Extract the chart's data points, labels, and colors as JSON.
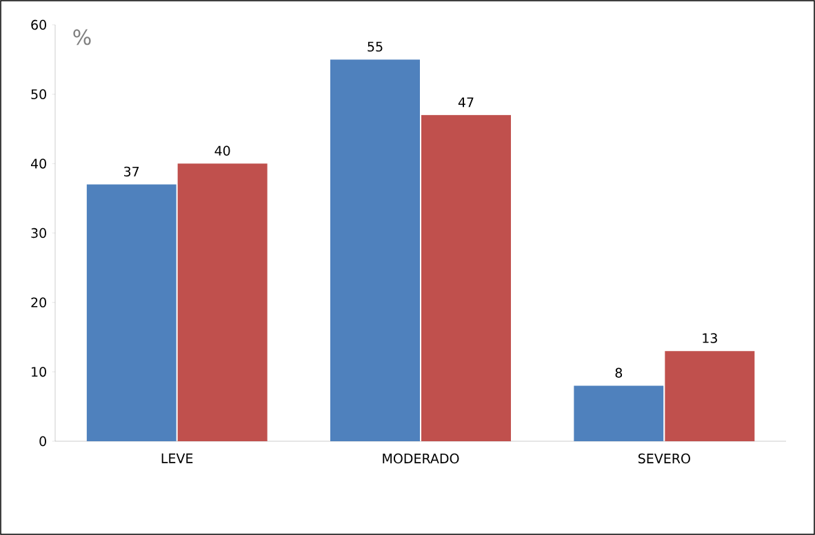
{
  "chart_data": {
    "type": "bar",
    "ylabel": "%",
    "categories": [
      "LEVE",
      "MODERADO",
      "SEVERO"
    ],
    "series": [
      {
        "color": "#4f81bd",
        "values": [
          37,
          55,
          8
        ]
      },
      {
        "color": "#c0504d",
        "values": [
          40,
          47,
          13
        ]
      }
    ],
    "ylim": [
      0,
      60
    ],
    "yticks": [
      0,
      10,
      20,
      30,
      40,
      50,
      60
    ],
    "data_labels": true
  }
}
